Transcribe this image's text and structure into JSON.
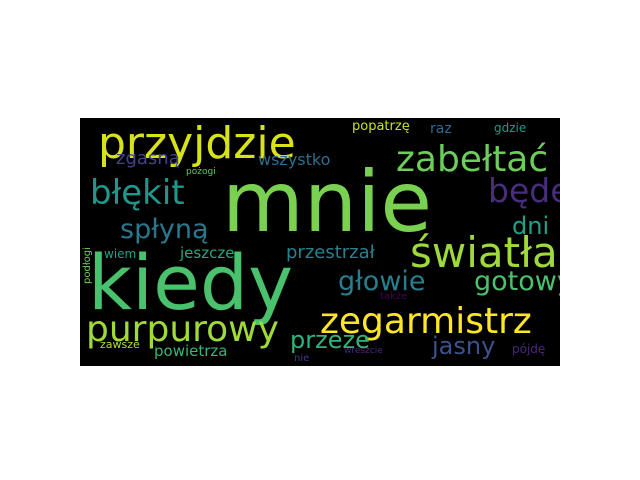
{
  "cloud": {
    "background": "#000000",
    "words": [
      {
        "text": "mnie",
        "color": "#7ad151"
      },
      {
        "text": "kiedy",
        "color": "#4ac16d"
      },
      {
        "text": "przyjdzie",
        "color": "#d8e219"
      },
      {
        "text": "zabełtać",
        "color": "#6ccd5a"
      },
      {
        "text": "błękit",
        "color": "#1f988b"
      },
      {
        "text": "będę",
        "color": "#472d7b"
      },
      {
        "text": "spłyną",
        "color": "#2a788e"
      },
      {
        "text": "dni",
        "color": "#1fa187"
      },
      {
        "text": "światła",
        "color": "#a0da39"
      },
      {
        "text": "głowie",
        "color": "#277f8e"
      },
      {
        "text": "gotowy",
        "color": "#4ac16d"
      },
      {
        "text": "purpurowy",
        "color": "#a0da39"
      },
      {
        "text": "zegarmistrz",
        "color": "#fde725"
      },
      {
        "text": "przeze",
        "color": "#2fb47c"
      },
      {
        "text": "jasny",
        "color": "#3b528b"
      },
      {
        "text": "przestrzał",
        "color": "#26828e"
      },
      {
        "text": "wszystko",
        "color": "#2e6e8e"
      },
      {
        "text": "jeszcze",
        "color": "#22a884"
      },
      {
        "text": "powietrza",
        "color": "#35b779"
      },
      {
        "text": "zgasną",
        "color": "#414487"
      },
      {
        "text": "popatrzę",
        "color": "#cae11f"
      },
      {
        "text": "raz",
        "color": "#31688e"
      },
      {
        "text": "gdzie",
        "color": "#1f9a8a"
      },
      {
        "text": "pożogi",
        "color": "#5ec962"
      },
      {
        "text": "wiem",
        "color": "#1fa188"
      },
      {
        "text": "zawsze",
        "color": "#b5de2b"
      },
      {
        "text": "pójdę",
        "color": "#482878"
      },
      {
        "text": "także",
        "color": "#440154"
      },
      {
        "text": "nie",
        "color": "#443983"
      },
      {
        "text": "wreszcie",
        "color": "#482677"
      },
      {
        "text": "podłogi",
        "color": "#6ece58"
      }
    ]
  }
}
